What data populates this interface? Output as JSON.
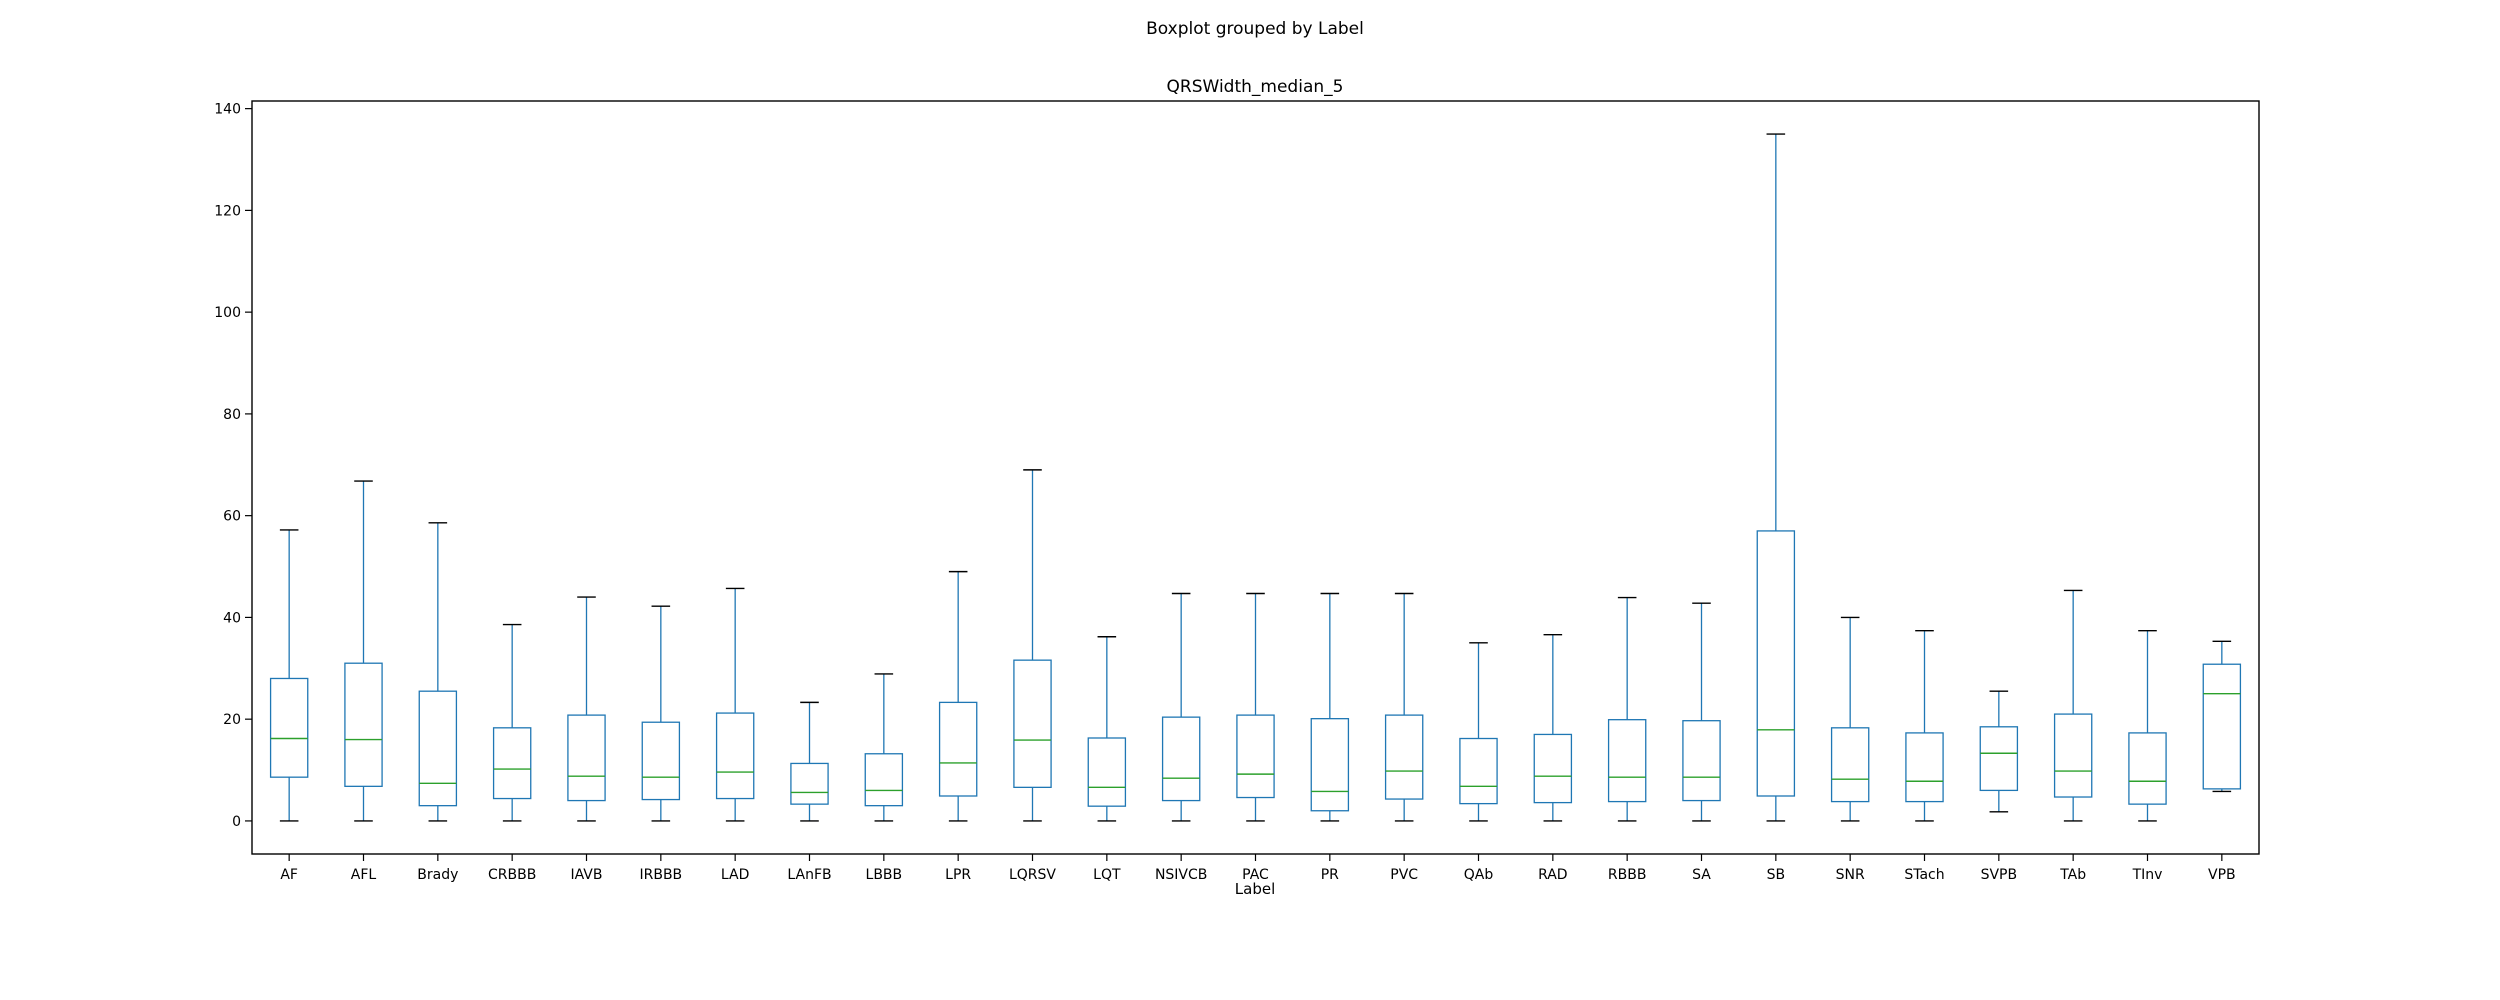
{
  "suptitle": "Boxplot grouped by Label",
  "chart_data": {
    "type": "box",
    "title": "QRSWidth_median_5",
    "xlabel": "Label",
    "ylabel": "",
    "ylim": [
      -6.5,
      141.5
    ],
    "yticks": [
      0,
      20,
      40,
      60,
      80,
      100,
      120,
      140
    ],
    "grid": false,
    "colors": {
      "box": "#1f77b4",
      "median": "#2ca02c",
      "cap": "#000000",
      "frame": "#000000"
    },
    "boxes": [
      {
        "label": "AF",
        "whislo": 0,
        "q1": 8.6,
        "med": 16.2,
        "q3": 28.0,
        "whishi": 57.2
      },
      {
        "label": "AFL",
        "whislo": 0,
        "q1": 6.8,
        "med": 16.0,
        "q3": 31.0,
        "whishi": 66.8
      },
      {
        "label": "Brady",
        "whislo": 0,
        "q1": 3.0,
        "med": 7.4,
        "q3": 25.5,
        "whishi": 58.6
      },
      {
        "label": "CRBBB",
        "whislo": 0,
        "q1": 4.4,
        "med": 10.2,
        "q3": 18.3,
        "whishi": 38.6
      },
      {
        "label": "IAVB",
        "whislo": 0,
        "q1": 4.0,
        "med": 8.8,
        "q3": 20.8,
        "whishi": 44.0
      },
      {
        "label": "IRBBB",
        "whislo": 0,
        "q1": 4.2,
        "med": 8.6,
        "q3": 19.4,
        "whishi": 42.2
      },
      {
        "label": "LAD",
        "whislo": 0,
        "q1": 4.4,
        "med": 9.6,
        "q3": 21.2,
        "whishi": 45.7
      },
      {
        "label": "LAnFB",
        "whislo": 0,
        "q1": 3.3,
        "med": 5.6,
        "q3": 11.3,
        "whishi": 23.3
      },
      {
        "label": "LBBB",
        "whislo": 0,
        "q1": 3.0,
        "med": 6.0,
        "q3": 13.2,
        "whishi": 28.9
      },
      {
        "label": "LPR",
        "whislo": 0,
        "q1": 4.9,
        "med": 11.4,
        "q3": 23.3,
        "whishi": 49.0
      },
      {
        "label": "LQRSV",
        "whislo": 0,
        "q1": 6.6,
        "med": 15.9,
        "q3": 31.6,
        "whishi": 69.0
      },
      {
        "label": "LQT",
        "whislo": 0,
        "q1": 2.9,
        "med": 6.6,
        "q3": 16.3,
        "whishi": 36.2
      },
      {
        "label": "NSIVCB",
        "whislo": 0,
        "q1": 4.0,
        "med": 8.4,
        "q3": 20.4,
        "whishi": 44.7
      },
      {
        "label": "PAC",
        "whislo": 0,
        "q1": 4.6,
        "med": 9.2,
        "q3": 20.8,
        "whishi": 44.7
      },
      {
        "label": "PR",
        "whislo": 0,
        "q1": 2.0,
        "med": 5.8,
        "q3": 20.1,
        "whishi": 44.7
      },
      {
        "label": "PVC",
        "whislo": 0,
        "q1": 4.3,
        "med": 9.8,
        "q3": 20.8,
        "whishi": 44.7
      },
      {
        "label": "QAb",
        "whislo": 0,
        "q1": 3.4,
        "med": 6.8,
        "q3": 16.2,
        "whishi": 35.0
      },
      {
        "label": "RAD",
        "whislo": 0,
        "q1": 3.6,
        "med": 8.8,
        "q3": 17.0,
        "whishi": 36.6
      },
      {
        "label": "RBBB",
        "whislo": 0,
        "q1": 3.8,
        "med": 8.6,
        "q3": 19.9,
        "whishi": 43.9
      },
      {
        "label": "SA",
        "whislo": 0,
        "q1": 4.0,
        "med": 8.6,
        "q3": 19.7,
        "whishi": 42.8
      },
      {
        "label": "SB",
        "whislo": 0,
        "q1": 4.9,
        "med": 17.9,
        "q3": 57.0,
        "whishi": 135.0
      },
      {
        "label": "SNR",
        "whislo": 0,
        "q1": 3.8,
        "med": 8.2,
        "q3": 18.3,
        "whishi": 40.0
      },
      {
        "label": "STach",
        "whislo": 0,
        "q1": 3.8,
        "med": 7.8,
        "q3": 17.3,
        "whishi": 37.4
      },
      {
        "label": "SVPB",
        "whislo": 1.8,
        "q1": 6.0,
        "med": 13.3,
        "q3": 18.5,
        "whishi": 25.5
      },
      {
        "label": "TAb",
        "whislo": 0,
        "q1": 4.7,
        "med": 9.8,
        "q3": 21.0,
        "whishi": 45.3
      },
      {
        "label": "TInv",
        "whislo": 0,
        "q1": 3.3,
        "med": 7.8,
        "q3": 17.3,
        "whishi": 37.4
      },
      {
        "label": "VPB",
        "whislo": 5.8,
        "q1": 6.3,
        "med": 25.0,
        "q3": 30.8,
        "whishi": 35.3
      }
    ]
  }
}
